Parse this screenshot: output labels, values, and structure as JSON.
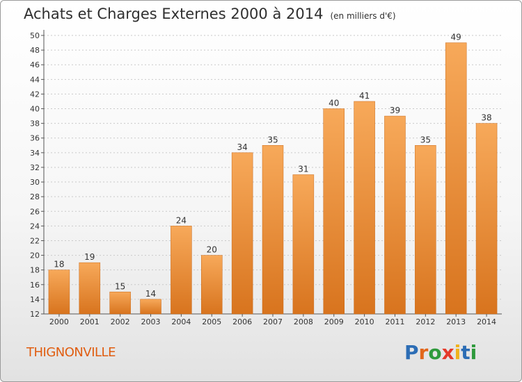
{
  "title": "Achats et Charges Externes 2000 à 2014",
  "subtitle": "(en milliers d'€)",
  "commune": "THIGNONVILLE",
  "logo": {
    "letters": [
      "P",
      "r",
      "o",
      "x",
      "i",
      "t",
      "i"
    ]
  },
  "colors": {
    "bar_light": "#f7a95a",
    "bar_dark": "#d8741e",
    "commune": "#e05d10",
    "logo": [
      "#2c6db5",
      "#e2661a",
      "#2f9a3c",
      "#e53a2a",
      "#f0b21b",
      "#2c6db5",
      "#2f9a3c"
    ]
  },
  "chart_data": {
    "type": "bar",
    "categories": [
      "2000",
      "2001",
      "2002",
      "2003",
      "2004",
      "2005",
      "2006",
      "2007",
      "2008",
      "2009",
      "2010",
      "2011",
      "2012",
      "2013",
      "2014"
    ],
    "values": [
      18,
      19,
      15,
      14,
      24,
      20,
      34,
      35,
      31,
      40,
      41,
      39,
      35,
      49,
      38
    ],
    "title": "Achats et Charges Externes 2000 à 2014",
    "ylim": [
      12,
      50
    ],
    "yticks": [
      12,
      14,
      16,
      18,
      20,
      22,
      24,
      26,
      28,
      30,
      32,
      34,
      36,
      38,
      40,
      42,
      44,
      46,
      48,
      50
    ],
    "grid": true,
    "data_labels": true
  }
}
